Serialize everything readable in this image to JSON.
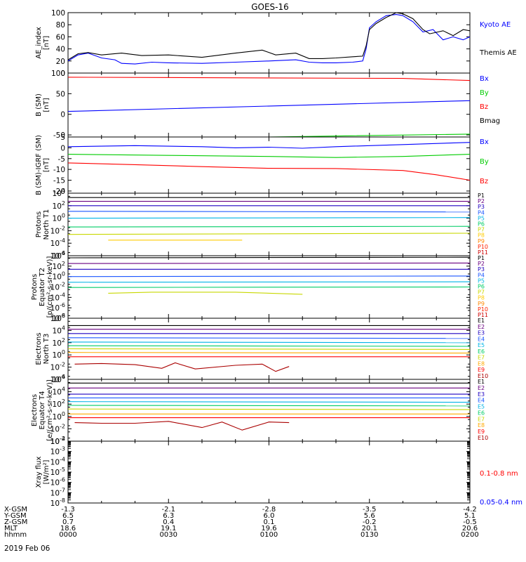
{
  "title": "GOES-16",
  "date_label": "2019 Feb 06",
  "orbit_table": {
    "row_labels": [
      "X-GSM",
      "Y-GSM",
      "Z-GSM",
      "MLT",
      "hhmm"
    ],
    "columns": [
      [
        "-1.3",
        "6.5",
        "0.7",
        "18.6",
        "0000"
      ],
      [
        "-2.1",
        "6.3",
        "0.4",
        "19.1",
        "0030"
      ],
      [
        "-2.8",
        "6.0",
        "0.1",
        "19.6",
        "0100"
      ],
      [
        "-3.5",
        "5.6",
        "-0.2",
        "20.1",
        "0130"
      ],
      [
        "-4.2",
        "5.1",
        "-0.5",
        "20.6",
        "0200"
      ]
    ]
  },
  "chart_data": [
    {
      "type": "line",
      "ylabel": [
        "AE_index",
        "[nT]"
      ],
      "ylim": [
        0,
        100
      ],
      "yticks": [
        "0",
        "20",
        "40",
        "60",
        "80",
        "100"
      ],
      "x_unit": "minutes from 0000 UT",
      "xlim": [
        0,
        120
      ],
      "series": [
        {
          "name": "Kyoto AE",
          "color": "#0000ff",
          "x": [
            0,
            3,
            6,
            10,
            14,
            16,
            20,
            25,
            30,
            40,
            50,
            60,
            68,
            72,
            76,
            80,
            85,
            88,
            89,
            90,
            92,
            95,
            98,
            100,
            103,
            106,
            109,
            112,
            115,
            118,
            120
          ],
          "y": [
            20,
            30,
            33,
            25,
            22,
            16,
            15,
            18,
            17,
            16,
            18,
            20,
            22,
            18,
            17,
            17,
            18,
            20,
            40,
            75,
            85,
            95,
            97,
            95,
            85,
            68,
            72,
            55,
            60,
            55,
            60
          ]
        },
        {
          "name": "Themis AE",
          "color": "#000000",
          "x": [
            0,
            3,
            6,
            10,
            16,
            22,
            30,
            40,
            50,
            58,
            62,
            68,
            72,
            76,
            80,
            85,
            88,
            89,
            90,
            92,
            95,
            98,
            100,
            103,
            106,
            108,
            112,
            115,
            118,
            120
          ],
          "y": [
            22,
            32,
            34,
            30,
            33,
            29,
            30,
            26,
            33,
            38,
            30,
            33,
            24,
            24,
            25,
            27,
            28,
            45,
            72,
            82,
            92,
            100,
            98,
            90,
            72,
            65,
            70,
            62,
            72,
            70
          ]
        }
      ]
    },
    {
      "type": "line",
      "ylabel": [
        "B (SM)",
        "[nT]"
      ],
      "ylim": [
        -55,
        100
      ],
      "yticks": [
        "-50",
        "0",
        "50",
        "100"
      ],
      "series": [
        {
          "name": "Bx",
          "color": "#0000ff",
          "x": [
            0,
            120
          ],
          "y": [
            7,
            33
          ]
        },
        {
          "name": "By",
          "color": "#00cc00",
          "x": [
            0,
            60,
            120
          ],
          "y": [
            -57,
            -55,
            -48
          ]
        },
        {
          "name": "Bz",
          "color": "#ff0000",
          "x": [
            0,
            100,
            120
          ],
          "y": [
            90,
            87,
            82
          ]
        },
        {
          "name": "Bmag",
          "color": "#000000",
          "x": [
            0,
            120
          ],
          "y": [
            105,
            104
          ]
        }
      ]
    },
    {
      "type": "line",
      "ylabel": [
        "B (SM)-IGRF (SM)",
        "[nT]"
      ],
      "ylim": [
        -21,
        5
      ],
      "yticks": [
        "-20",
        "-15",
        "-10",
        "-5",
        "0",
        "5"
      ],
      "series": [
        {
          "name": "Bx",
          "color": "#0000ff",
          "x": [
            0,
            20,
            40,
            50,
            60,
            70,
            80,
            100,
            120
          ],
          "y": [
            0.5,
            1,
            0.5,
            0,
            0.3,
            -0.2,
            0.5,
            1.5,
            2.5
          ]
        },
        {
          "name": "By",
          "color": "#00cc00",
          "x": [
            0,
            30,
            60,
            80,
            100,
            120
          ],
          "y": [
            -3,
            -3.5,
            -4,
            -4.5,
            -4,
            -3
          ]
        },
        {
          "name": "Bz",
          "color": "#ff0000",
          "x": [
            0,
            20,
            40,
            60,
            80,
            100,
            110,
            120
          ],
          "y": [
            -7,
            -7.8,
            -8.7,
            -9.5,
            -9.6,
            -10.5,
            -12.5,
            -15
          ]
        }
      ]
    },
    {
      "type": "line",
      "ylabel": [
        "Protons",
        "North T1"
      ],
      "ylog": true,
      "ylim": [
        -6,
        4
      ],
      "yticks": [
        "10^-6",
        "10^-4",
        "10^-2",
        "10^0",
        "10^2",
        "10^4"
      ],
      "series": [
        {
          "name": "P1",
          "color": "#000000",
          "x": [
            0,
            120
          ],
          "y": [
            3.3,
            3.3
          ]
        },
        {
          "name": "P2",
          "color": "#6a0080",
          "x": [
            0,
            120
          ],
          "y": [
            2.7,
            2.7
          ]
        },
        {
          "name": "P3",
          "color": "#1f00c0",
          "x": [
            0,
            120
          ],
          "y": [
            2.0,
            2.0
          ]
        },
        {
          "name": "P4",
          "color": "#1a56ff",
          "x": [
            0,
            120
          ],
          "y": [
            1.1,
            1.0
          ]
        },
        {
          "name": "P5",
          "color": "#00b4e6",
          "x": [
            0,
            120
          ],
          "y": [
            0.0,
            0.1
          ]
        },
        {
          "name": "P6",
          "color": "#00cc66",
          "x": [
            0,
            120
          ],
          "y": [
            -1.4,
            -1.3
          ]
        },
        {
          "name": "P7",
          "color": "#c8d800",
          "x": [
            0,
            120
          ],
          "y": [
            -2.6,
            -2.4
          ]
        },
        {
          "name": "P8",
          "color": "#ffcc00",
          "x": [
            12,
            18,
            40,
            52
          ],
          "y": [
            -3.5,
            -3.5,
            -3.5,
            -3.5
          ]
        }
      ],
      "legend": [
        "P1",
        "P2",
        "P3",
        "P4",
        "P5",
        "P6",
        "P7",
        "P8",
        "P9",
        "P10",
        "P11"
      ]
    },
    {
      "type": "line",
      "ylabel": [
        "Protons",
        "Equator T2",
        "[p/(cm²-s-sr-keV)]"
      ],
      "ylog": true,
      "ylim": [
        -8,
        4
      ],
      "yticks": [
        "10^-8",
        "10^-6",
        "10^-4",
        "10^-2",
        "10^0",
        "10^2",
        "10^4"
      ],
      "series": [
        {
          "name": "P1",
          "color": "#000000",
          "x": [
            0,
            120
          ],
          "y": [
            3.6,
            3.7
          ]
        },
        {
          "name": "P2",
          "color": "#6a0080",
          "x": [
            0,
            120
          ],
          "y": [
            2.5,
            2.6
          ]
        },
        {
          "name": "P3",
          "color": "#1f00c0",
          "x": [
            0,
            120
          ],
          "y": [
            1.4,
            1.4
          ]
        },
        {
          "name": "P4",
          "color": "#1a56ff",
          "x": [
            0,
            120
          ],
          "y": [
            0.0,
            0.1
          ]
        },
        {
          "name": "P5",
          "color": "#00b4e6",
          "x": [
            0,
            120
          ],
          "y": [
            -1.1,
            -1.0
          ]
        },
        {
          "name": "P6",
          "color": "#00cc66",
          "x": [
            0,
            120
          ],
          "y": [
            -2.1,
            -2.0
          ]
        },
        {
          "name": "P7",
          "color": "#c8d800",
          "x": [
            12,
            25,
            50,
            70
          ],
          "y": [
            -3.2,
            -3.0,
            -3.0,
            -3.4
          ]
        }
      ],
      "legend": [
        "P1",
        "P2",
        "P3",
        "P4",
        "P5",
        "P6",
        "P7",
        "P8",
        "P9",
        "P10",
        "P11"
      ]
    },
    {
      "type": "line",
      "ylabel": [
        "Electrons",
        "North T3"
      ],
      "ylog": true,
      "ylim": [
        -4,
        6
      ],
      "yticks": [
        "10^-4",
        "10^-2",
        "10^0",
        "10^2",
        "10^4",
        "10^6"
      ],
      "series": [
        {
          "name": "E1",
          "color": "#000000",
          "x": [
            0,
            120
          ],
          "y": [
            4.8,
            4.8
          ]
        },
        {
          "name": "E2",
          "color": "#6a0080",
          "x": [
            0,
            120
          ],
          "y": [
            4.2,
            4.2
          ]
        },
        {
          "name": "E3",
          "color": "#1f00c0",
          "x": [
            0,
            120
          ],
          "y": [
            3.5,
            3.5
          ]
        },
        {
          "name": "E4",
          "color": "#1a56ff",
          "x": [
            0,
            120
          ],
          "y": [
            2.8,
            2.7
          ]
        },
        {
          "name": "E5",
          "color": "#00b4e6",
          "x": [
            0,
            120
          ],
          "y": [
            2.1,
            2.0
          ]
        },
        {
          "name": "E6",
          "color": "#00cc66",
          "x": [
            0,
            120
          ],
          "y": [
            1.5,
            1.4
          ]
        },
        {
          "name": "E7",
          "color": "#c8d800",
          "x": [
            0,
            120
          ],
          "y": [
            1.0,
            0.9
          ]
        },
        {
          "name": "E8",
          "color": "#ffaa00",
          "x": [
            0,
            120
          ],
          "y": [
            0.4,
            0.3
          ]
        },
        {
          "name": "E9",
          "color": "#ff0000",
          "x": [
            0,
            120
          ],
          "y": [
            -0.3,
            -0.3
          ]
        },
        {
          "name": "E10",
          "color": "#aa0000",
          "x": [
            2,
            10,
            20,
            28,
            32,
            38,
            50,
            58,
            62,
            66
          ],
          "y": [
            -1.5,
            -1.4,
            -1.6,
            -2.2,
            -1.3,
            -2.3,
            -1.7,
            -1.5,
            -2.7,
            -1.9
          ]
        }
      ],
      "legend": [
        "E1",
        "E2",
        "E3",
        "E4",
        "E5",
        "E6",
        "E7",
        "E8",
        "E9",
        "E10"
      ]
    },
    {
      "type": "line",
      "ylabel": [
        "Electrons",
        "Equator T4",
        "[e/(cm²-s-sr-keV)]"
      ],
      "ylog": true,
      "ylim": [
        -4,
        6
      ],
      "yticks": [
        "10^-4",
        "10^-2",
        "10^0",
        "10^2",
        "10^4",
        "10^6"
      ],
      "series": [
        {
          "name": "E1",
          "color": "#000000",
          "x": [
            0,
            120
          ],
          "y": [
            5.4,
            5.4
          ]
        },
        {
          "name": "E2",
          "color": "#6a0080",
          "x": [
            0,
            120
          ],
          "y": [
            4.6,
            4.6
          ]
        },
        {
          "name": "E3",
          "color": "#1f00c0",
          "x": [
            0,
            120
          ],
          "y": [
            3.6,
            3.6
          ]
        },
        {
          "name": "E4",
          "color": "#1a56ff",
          "x": [
            0,
            120
          ],
          "y": [
            3.0,
            3.0
          ]
        },
        {
          "name": "E5",
          "color": "#00b4e6",
          "x": [
            0,
            120
          ],
          "y": [
            2.4,
            2.3
          ]
        },
        {
          "name": "E6",
          "color": "#00cc66",
          "x": [
            0,
            120
          ],
          "y": [
            1.8,
            1.7
          ]
        },
        {
          "name": "E7",
          "color": "#c8d800",
          "x": [
            0,
            120
          ],
          "y": [
            1.2,
            1.1
          ]
        },
        {
          "name": "E8",
          "color": "#ffaa00",
          "x": [
            0,
            120
          ],
          "y": [
            0.4,
            0.4
          ]
        },
        {
          "name": "E9",
          "color": "#ff0000",
          "x": [
            0,
            120
          ],
          "y": [
            -0.2,
            -0.2
          ]
        },
        {
          "name": "E10",
          "color": "#aa0000",
          "x": [
            2,
            10,
            20,
            30,
            40,
            46,
            52,
            60,
            66
          ],
          "y": [
            -1.0,
            -1.1,
            -1.1,
            -0.8,
            -1.8,
            -0.9,
            -2.2,
            -0.9,
            -1.0
          ]
        }
      ],
      "legend": [
        "E1",
        "E2",
        "E3",
        "E4",
        "E5",
        "E6",
        "E7",
        "E8",
        "E9",
        "E10"
      ]
    },
    {
      "type": "line",
      "ylabel": [
        "Xray flux",
        "[W/m²]"
      ],
      "ylog": true,
      "ylim": [
        -8,
        -2
      ],
      "yticks": [
        "10^-8",
        "10^-7",
        "10^-6",
        "10^-5",
        "10^-4",
        "10^-3",
        "10^-2"
      ],
      "series": [
        {
          "name": "0.1-0.8 nm",
          "color": "#ff0000",
          "x": [],
          "y": []
        },
        {
          "name": "0.05-0.4 nm",
          "color": "#0000ff",
          "x": [],
          "y": []
        }
      ]
    }
  ]
}
